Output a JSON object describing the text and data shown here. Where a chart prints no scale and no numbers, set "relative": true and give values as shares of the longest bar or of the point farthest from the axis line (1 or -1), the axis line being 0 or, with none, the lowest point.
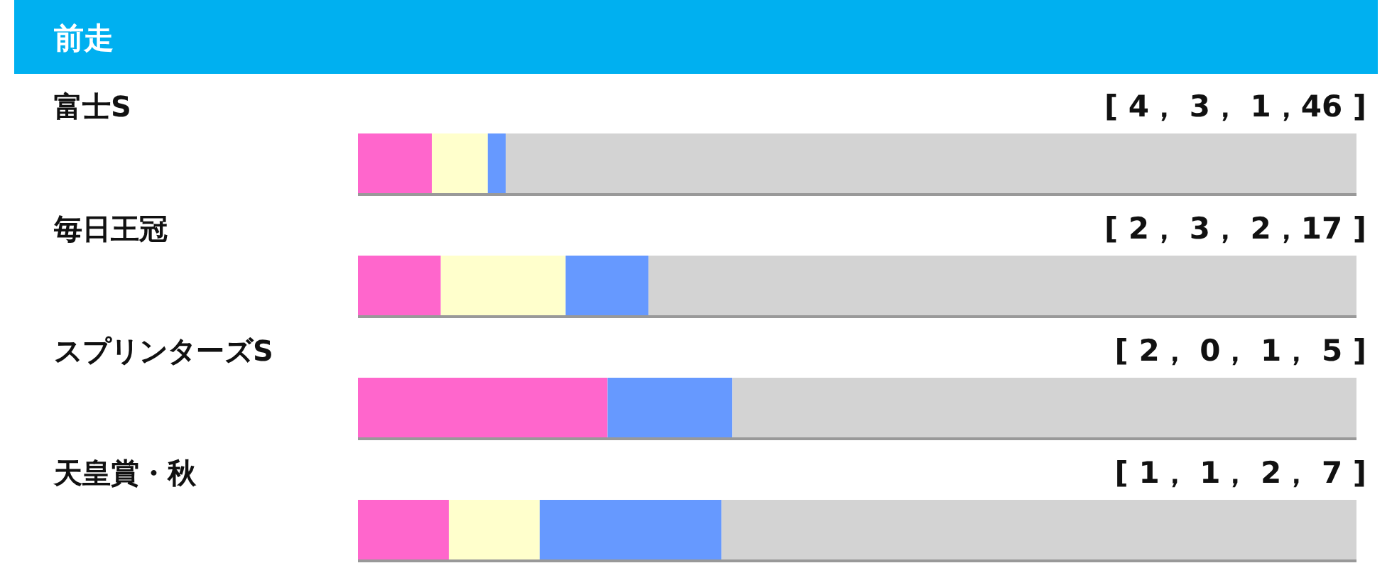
{
  "chart_data": {
    "type": "bar",
    "orientation": "horizontal",
    "stacked": true,
    "relative": true,
    "title": "前走",
    "categories": [
      "富士S",
      "毎日王冠",
      "スプリンターズS",
      "天皇賞・秋"
    ],
    "series": [
      {
        "color": "#ff66cc",
        "values": [
          0.074,
          0.083,
          0.25,
          0.091
        ]
      },
      {
        "color": "#ffffcc",
        "values": [
          0.056,
          0.125,
          0,
          0.091
        ]
      },
      {
        "color": "#6699ff",
        "values": [
          0.018,
          0.083,
          0.125,
          0.182
        ]
      },
      {
        "color": "#d3d3d3",
        "values": [
          0.852,
          0.709,
          0.625,
          0.636
        ]
      }
    ],
    "annotations": [
      "[ 4， 3， 1，46 ]",
      "[ 2， 3， 2，17 ]",
      "[ 2， 0， 1， 5 ]",
      "[ 1， 1， 2， 7 ]"
    ]
  }
}
